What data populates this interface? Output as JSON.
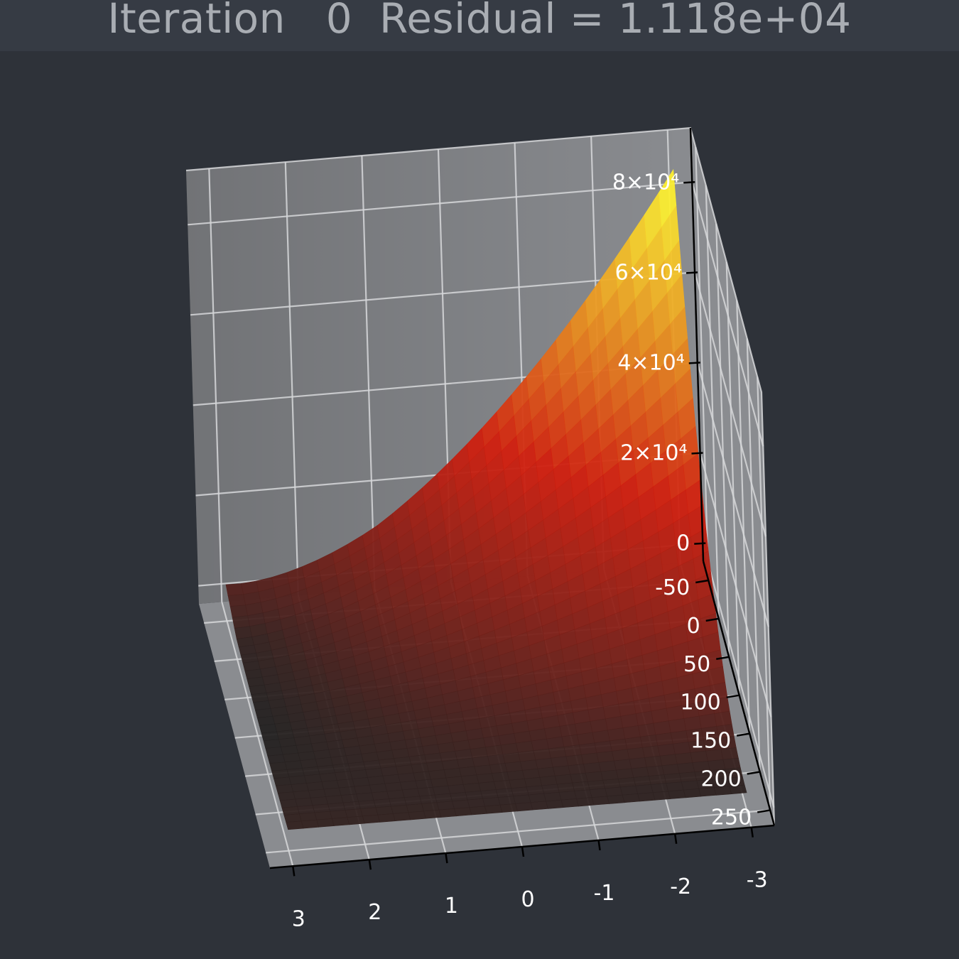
{
  "title": {
    "prefix": "Iteration",
    "iteration": "0",
    "residual_label": "Residual =",
    "residual_value": "1.118e+04"
  },
  "colors": {
    "background": "#2e3239",
    "title_bar": "#363b44",
    "pane": "#8a8c90",
    "grid": "#d6d7d9",
    "surface_low": "#222222",
    "surface_mid": "#d11f0f",
    "surface_high": "#ffff33"
  },
  "chart_data": {
    "type": "surface3d",
    "title": "Iteration    0  Residual = 1.118e+04",
    "x_axis": {
      "ticks": [
        3,
        2,
        1,
        0,
        -1,
        -2,
        -3
      ],
      "labels": [
        "3",
        "2",
        "1",
        "0",
        "-1",
        "-2",
        "-3"
      ],
      "range": [
        -3.3,
        3.3
      ]
    },
    "y_axis": {
      "ticks": [
        -50,
        0,
        50,
        100,
        150,
        200,
        250
      ],
      "labels": [
        "-50",
        "0",
        "50",
        "100",
        "150",
        "200",
        "250"
      ],
      "range": [
        -75,
        270
      ]
    },
    "z_axis": {
      "ticks": [
        0,
        20000,
        40000,
        60000,
        80000
      ],
      "labels": [
        "0",
        "2×10⁴",
        "4×10⁴",
        "6×10⁴",
        "8×10⁴"
      ],
      "range": [
        -4000,
        92000
      ]
    },
    "surface": {
      "x_range": [
        -3,
        3
      ],
      "y_range": [
        -50,
        250
      ],
      "z_max": 87000,
      "colormap": [
        "#222222",
        "#d11f0f",
        "#ffff33"
      ]
    },
    "grid": true,
    "legend": "none"
  }
}
